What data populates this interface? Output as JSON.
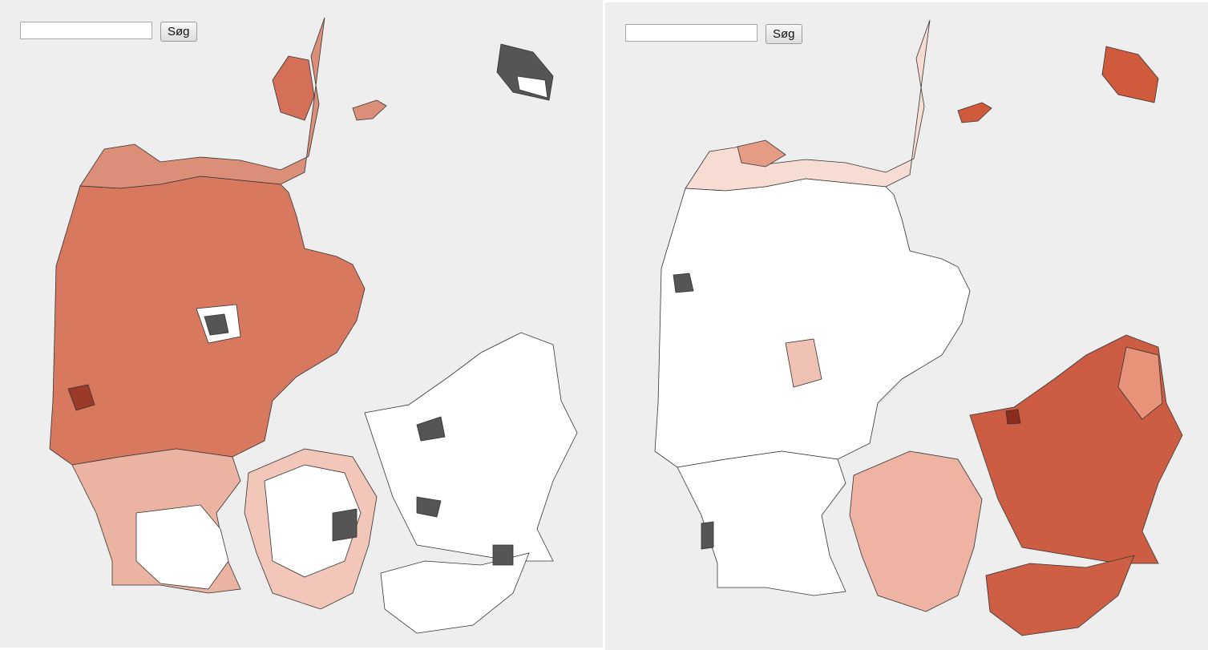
{
  "panels": [
    {
      "button": "Søg"
    },
    {
      "button": "Søg"
    }
  ]
}
